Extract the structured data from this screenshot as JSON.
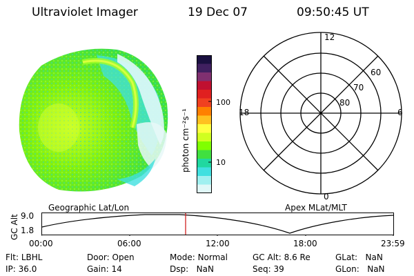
{
  "header": {
    "title": "Ultraviolet Imager",
    "date": "19 Dec 07",
    "time": "09:50:45 UT"
  },
  "colorbar": {
    "unit_label": "photon cm⁻²s⁻¹",
    "ticks": [
      "100",
      "10"
    ],
    "colors": [
      "#1a1040",
      "#402060",
      "#803070",
      "#c01030",
      "#e02020",
      "#f04020",
      "#ff8000",
      "#ffc020",
      "#ffff40",
      "#d0ff20",
      "#80ff00",
      "#40e040",
      "#20d8a0",
      "#40e0e0",
      "#a0f0f0",
      "#e0f8f8"
    ]
  },
  "polar": {
    "labels": {
      "top": "12",
      "bottom": "0",
      "left": "18",
      "right": "6",
      "lat60": "60",
      "lat70": "70",
      "lat80": "80"
    }
  },
  "panel_labels": {
    "left": "Geographic Lat/Lon",
    "right": "Apex MLat/MLT"
  },
  "orbit": {
    "axis_label": "GC Alt",
    "y_ticks": [
      "9.0",
      "1.8"
    ],
    "x_ticks": [
      "00:00",
      "06:00",
      "12:00",
      "18:00",
      "23:59"
    ],
    "marker_color": "#d02020"
  },
  "info": {
    "row1": [
      {
        "label": "Flt:",
        "value": "LBHL"
      },
      {
        "label": "Door:",
        "value": "Open"
      },
      {
        "label": "Mode:",
        "value": "Normal"
      },
      {
        "label": "GC Alt:",
        "value": "8.6 Re"
      },
      {
        "label": "GLat:",
        "value": "NaN"
      }
    ],
    "row2": [
      {
        "label": "IP:",
        "value": "36.0"
      },
      {
        "label": "Gain:",
        "value": "14"
      },
      {
        "label": "Dsp:",
        "value": "NaN"
      },
      {
        "label": "Seq:",
        "value": "39"
      },
      {
        "label": "GLon:",
        "value": "NaN"
      }
    ]
  }
}
